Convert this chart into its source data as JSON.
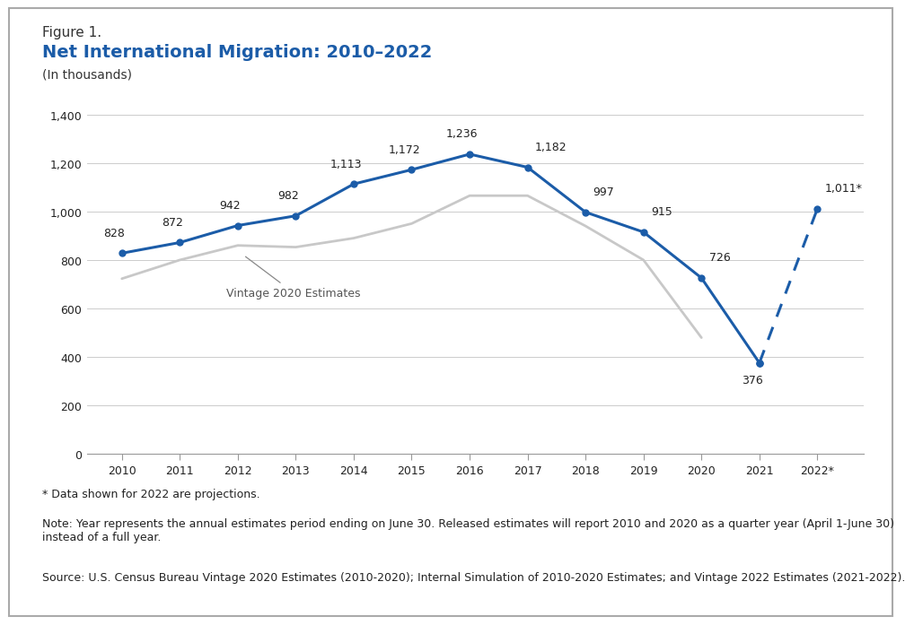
{
  "title_figure": "Figure 1.",
  "title_main": "Net International Migration: 2010–2022",
  "title_sub": "(In thousands)",
  "background_color": "#ffffff",
  "border_color": "#b0b0b0",
  "main_years": [
    2010,
    2011,
    2012,
    2013,
    2014,
    2015,
    2016,
    2017,
    2018,
    2019,
    2020,
    2021
  ],
  "main_values": [
    828,
    872,
    942,
    982,
    1113,
    1172,
    1236,
    1182,
    997,
    915,
    726,
    376
  ],
  "proj_years": [
    2021,
    2022
  ],
  "proj_values": [
    376,
    1011
  ],
  "vintage_years": [
    2010,
    2011,
    2012,
    2013,
    2014,
    2015,
    2016,
    2017,
    2018,
    2019,
    2020
  ],
  "vintage_values": [
    723,
    800,
    860,
    853,
    890,
    950,
    1065,
    1065,
    940,
    800,
    480
  ],
  "main_line_color": "#1B5CA8",
  "vintage_line_color": "#c8c8c8",
  "ylim": [
    0,
    1400
  ],
  "yticks": [
    0,
    200,
    400,
    600,
    800,
    1000,
    1200,
    1400
  ],
  "ytick_labels": [
    "0",
    "200",
    "400",
    "600",
    "800",
    "1,000",
    "1,200",
    "1,400"
  ],
  "xlabel_ticks": [
    "2010",
    "2011",
    "2012",
    "2013",
    "2014",
    "2015",
    "2016",
    "2017",
    "2018",
    "2019",
    "2020",
    "2021",
    "2022*"
  ],
  "label_map": {
    "2010": [
      "828",
      -1,
      12,
      "center"
    ],
    "2011": [
      "872",
      -1,
      12,
      "center"
    ],
    "2012": [
      "942",
      -1,
      12,
      "center"
    ],
    "2013": [
      "982",
      -1,
      12,
      "center"
    ],
    "2014": [
      "1,113",
      -1,
      12,
      "center"
    ],
    "2015": [
      "1,172",
      -1,
      12,
      "center"
    ],
    "2016": [
      "1,236",
      -1,
      12,
      "center"
    ],
    "2017": [
      "1,182",
      1,
      12,
      "left"
    ],
    "2018": [
      "997",
      1,
      12,
      "left"
    ],
    "2019": [
      "915",
      1,
      12,
      "left"
    ],
    "2020": [
      "726",
      1,
      12,
      "left"
    ],
    "2021": [
      "376",
      -1,
      -18,
      "center"
    ],
    "2022": [
      "1,011*",
      1,
      12,
      "left"
    ]
  },
  "vintage_label": "Vintage 2020 Estimates",
  "footnote1": "* Data shown for 2022 are projections.",
  "footnote2": "Note: Year represents the annual estimates period ending on June 30. Released estimates will report 2010 and 2020 as a quarter year (April 1-June 30) instead of a full year.",
  "footnote3": "Source: U.S. Census Bureau Vintage 2020 Estimates (2010-2020); Internal Simulation of 2010-2020 Estimates; and Vintage 2022 Estimates (2021-2022).",
  "text_color": "#222222",
  "label_fontsize": 9,
  "axis_fontsize": 9,
  "footnote_fontsize": 9,
  "title_figure_fontsize": 11,
  "title_main_fontsize": 14,
  "title_sub_fontsize": 10
}
